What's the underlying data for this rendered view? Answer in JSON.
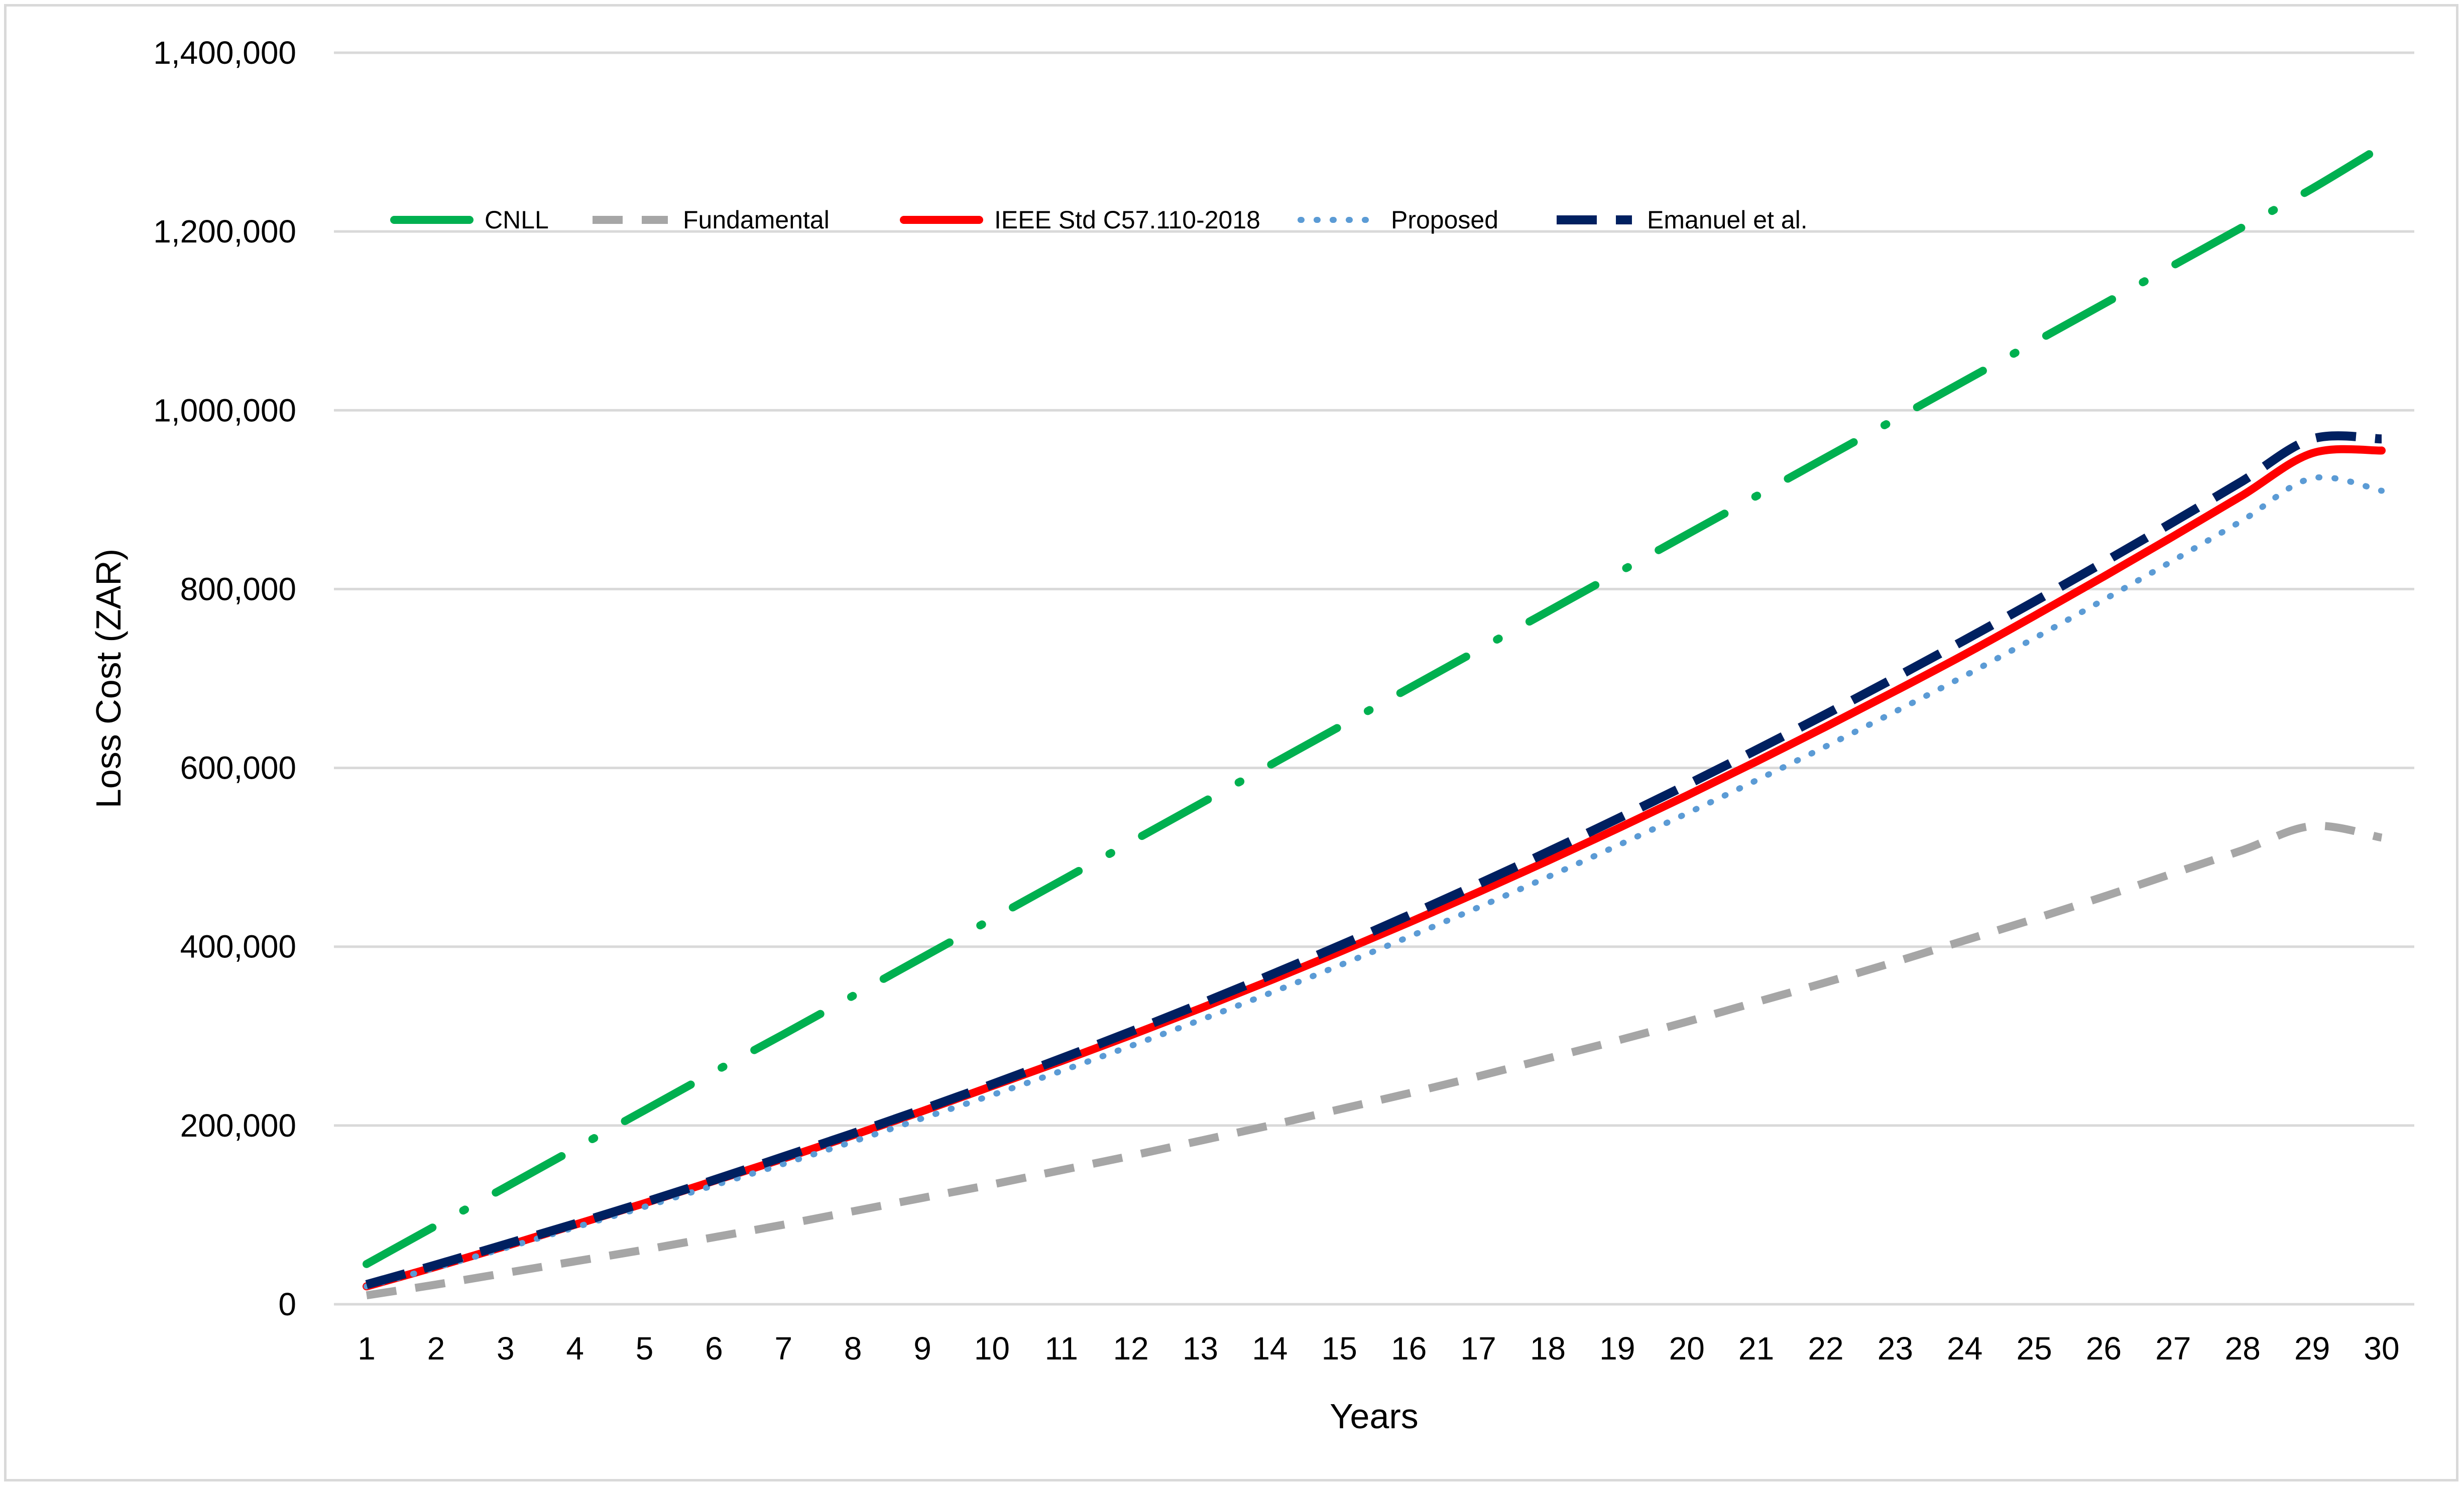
{
  "chart_data": {
    "type": "line",
    "title": "",
    "xlabel": "Years",
    "ylabel": "Loss Cost (ZAR)",
    "ylim": [
      0,
      1400000
    ],
    "yticks": [
      "0",
      "200,000",
      "400,000",
      "600,000",
      "800,000",
      "1,000,000",
      "1,200,000",
      "1,400,000"
    ],
    "ytick_values": [
      0,
      200000,
      400000,
      600000,
      800000,
      1000000,
      1200000,
      1400000
    ],
    "x": [
      1,
      2,
      3,
      4,
      5,
      6,
      7,
      8,
      9,
      10,
      11,
      12,
      13,
      14,
      15,
      16,
      17,
      18,
      19,
      20,
      21,
      22,
      23,
      24,
      25,
      26,
      27,
      28,
      29,
      30
    ],
    "grid": "horizontal",
    "legend_position": "top-left",
    "series": [
      {
        "name": "CNLL",
        "color": "#00b050",
        "style": "long-dash-dot",
        "values": [
          45000,
          88000,
          131000,
          174000,
          217000,
          260000,
          302000,
          345000,
          388000,
          431000,
          474000,
          517000,
          560000,
          603000,
          646000,
          689000,
          732000,
          775000,
          818000,
          861000,
          904000,
          947000,
          990000,
          1033000,
          1076000,
          1119000,
          1162000,
          1205000,
          1248000,
          1295000
        ]
      },
      {
        "name": "Fundamental",
        "color": "#a6a6a6",
        "style": "dash",
        "values": [
          10000,
          22000,
          35000,
          48000,
          61000,
          75000,
          89000,
          104000,
          119000,
          134000,
          150000,
          166000,
          183000,
          200000,
          218000,
          236000,
          255000,
          275000,
          295000,
          316000,
          338000,
          360000,
          383000,
          407000,
          431000,
          456000,
          482000,
          508000,
          535000,
          522000
        ]
      },
      {
        "name": "IEEE Std C57.110-2018",
        "color": "#ff0000",
        "style": "solid",
        "values": [
          20000,
          42000,
          65000,
          89000,
          113000,
          138000,
          163000,
          189000,
          216000,
          244000,
          272000,
          301000,
          331000,
          362000,
          394000,
          427000,
          461000,
          496000,
          532000,
          569000,
          607000,
          646000,
          686000,
          727000,
          770000,
          814000,
          859000,
          905000,
          952000,
          955000
        ]
      },
      {
        "name": "Proposed",
        "color": "#5b9bd5",
        "style": "dot",
        "values": [
          20000,
          41000,
          63000,
          86000,
          109000,
          133000,
          157000,
          182000,
          208000,
          234000,
          261000,
          289000,
          318000,
          348000,
          379000,
          411000,
          444000,
          478000,
          513000,
          549000,
          586000,
          624000,
          663000,
          703000,
          745000,
          788000,
          832000,
          877000,
          924000,
          910000
        ]
      },
      {
        "name": "Emanuel et al.",
        "color": "#002060",
        "style": "long-dash",
        "values": [
          22000,
          44000,
          67000,
          90000,
          114000,
          139000,
          165000,
          191000,
          218000,
          246000,
          275000,
          305000,
          336000,
          368000,
          401000,
          435000,
          470000,
          506000,
          543000,
          581000,
          620000,
          660000,
          701000,
          743000,
          786000,
          830000,
          875000,
          921000,
          968000,
          968000
        ]
      }
    ]
  }
}
